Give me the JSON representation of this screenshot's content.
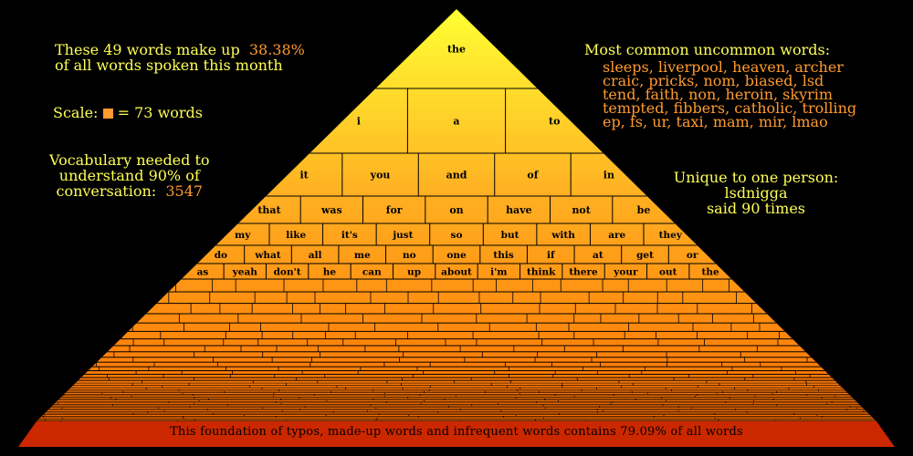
{
  "stats": {
    "line1": "These 49 words make up",
    "percent": "38.38%",
    "line2": "of all words spoken this month"
  },
  "scale": {
    "prefix": "Scale:",
    "suffix": "= 73 words"
  },
  "vocab": {
    "line1": "Vocabulary needed to",
    "line2": "understand 90% of",
    "line3": "conversation:",
    "value": "3547"
  },
  "uncommon": {
    "title": "Most common uncommon words:",
    "lines": [
      "sleeps, liverpool, heaven, archer",
      "craic, pricks, nom, biased, lsd",
      "tend, faith, non, heroin, skyrim",
      "tempted, fibbers, catholic, trolling",
      "ep, fs, ur, taxi, mam, mir, lmao"
    ]
  },
  "unique": {
    "title": "Unique to one person:",
    "name": "lsdnigga",
    "count": "said 90 times"
  },
  "pyramid": {
    "rows": [
      [
        "the"
      ],
      [
        "i",
        "a",
        "to"
      ],
      [
        "it",
        "you",
        "and",
        "of",
        "in"
      ],
      [
        "that",
        "was",
        "for",
        "on",
        "have",
        "not",
        "be"
      ],
      [
        "my",
        "like",
        "it's",
        "just",
        "so",
        "but",
        "with",
        "are",
        "they"
      ],
      [
        "do",
        "what",
        "all",
        "me",
        "no",
        "one",
        "this",
        "if",
        "at",
        "get",
        "or"
      ],
      [
        "as",
        "yeah",
        "don't",
        "he",
        "can",
        "up",
        "about",
        "i'm",
        "think",
        "there",
        "your",
        "out",
        "the"
      ]
    ],
    "foundation": "This foundation of typos, made-up words and infrequent words contains 79.09% of all words"
  },
  "colors": {
    "apex": "#ffff33",
    "mid": "#ffa020",
    "base": "#ff7a00",
    "foundation": "#cc2800",
    "yellow_text": "#ffff55",
    "orange_text": "#ff9b2e"
  }
}
